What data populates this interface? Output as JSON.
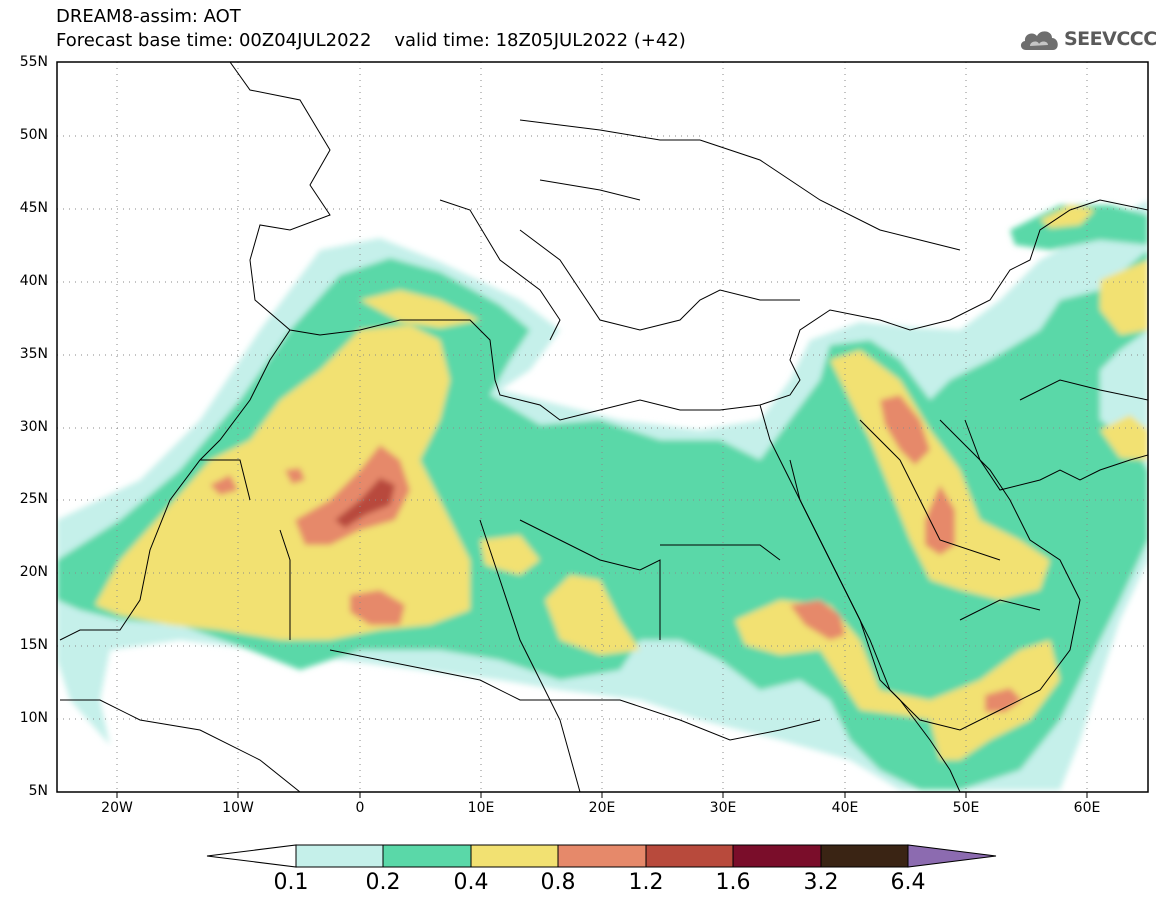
{
  "header": {
    "title": "DREAM8-assim: AOT",
    "subtitle": "Forecast base time: 00Z04JUL2022    valid time: 18Z05JUL2022 (+42)"
  },
  "logo": {
    "text": "SEEVCCC",
    "icon": "cloud-icon"
  },
  "map": {
    "lat_labels": [
      "55N",
      "50N",
      "45N",
      "40N",
      "35N",
      "30N",
      "25N",
      "20N",
      "15N",
      "10N",
      "5N"
    ],
    "lon_labels": [
      "20W",
      "10W",
      "0",
      "10E",
      "20E",
      "30E",
      "40E",
      "50E",
      "60E"
    ],
    "lon_range": [
      -25,
      65
    ],
    "lat_range": [
      5,
      55
    ]
  },
  "colorbar": {
    "labels": [
      "0.1",
      "0.2",
      "0.4",
      "0.8",
      "1.2",
      "1.6",
      "3.2",
      "6.4"
    ],
    "colors": [
      "#ffffff",
      "#c5f0ea",
      "#5ad8a8",
      "#f2e172",
      "#e6896a",
      "#b84a3c",
      "#7a0d2a",
      "#3a2414",
      "#8c6bb0"
    ]
  }
}
